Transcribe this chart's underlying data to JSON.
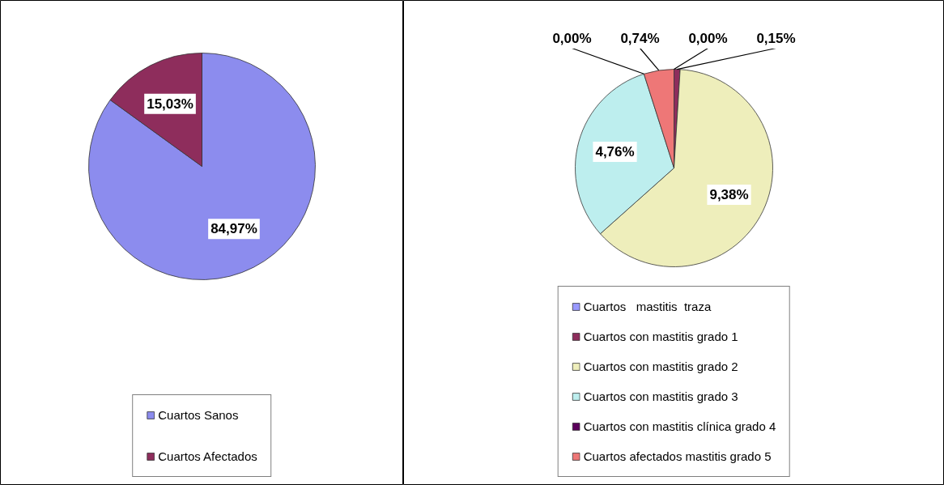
{
  "chart_data": [
    {
      "type": "pie",
      "categories": [
        "Cuartos Sanos",
        "Cuartos Afectados"
      ],
      "values": [
        84.97,
        15.03
      ],
      "colors": [
        "#8c8cee",
        "#8e2d5c"
      ],
      "value_labels": [
        "84,97%",
        "15,03%"
      ],
      "legend": "bottom"
    },
    {
      "type": "pie",
      "categories": [
        "Cuartos   mastitis  traza",
        "Cuartos con mastitis grado 1",
        "Cuartos con mastitis grado 2",
        "Cuartos con mastitis grado 3",
        "Cuartos con mastitis clínica grado 4",
        "Cuartos afectados mastitis grado 5"
      ],
      "values": [
        0.0,
        0.15,
        9.38,
        4.76,
        0.0,
        0.74
      ],
      "colors": [
        "#9999ff",
        "#8e2d5c",
        "#eeeebb",
        "#bdeeee",
        "#5c005c",
        "#ee7777"
      ],
      "value_labels": [
        "0,00%",
        "0,15%",
        "9,38%",
        "4,76%",
        "0,00%",
        "0,74%"
      ],
      "legend": "bottom"
    }
  ]
}
